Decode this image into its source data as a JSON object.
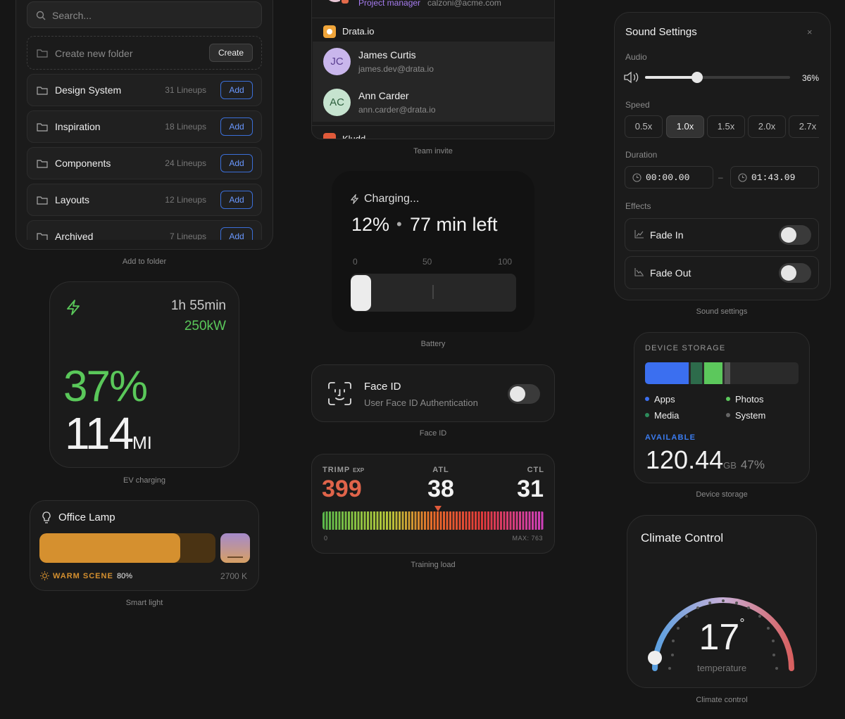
{
  "add_to_folder": {
    "search_placeholder": "Search...",
    "create_placeholder": "Create new folder",
    "create_button": "Create",
    "folders": [
      {
        "name": "Design System",
        "count": "31 Lineups",
        "button": "Add"
      },
      {
        "name": "Inspiration",
        "count": "18 Lineups",
        "button": "Add"
      },
      {
        "name": "Components",
        "count": "24 Lineups",
        "button": "Add"
      },
      {
        "name": "Layouts",
        "count": "12 Lineups",
        "button": "Add"
      },
      {
        "name": "Archived",
        "count": "7 Lineups",
        "button": "Add"
      }
    ],
    "caption": "Add to folder"
  },
  "ev_charging": {
    "time": "1h 55min",
    "power": "250kW",
    "percent": "37%",
    "range": "114",
    "range_unit": "MI",
    "caption": "EV charging"
  },
  "smart_light": {
    "title": "Office Lamp",
    "scene": "WARM SCENE",
    "separator": "·",
    "brightness": "80%",
    "temperature": "2700 K",
    "caption": "Smart light"
  },
  "team_invite": {
    "partial_member": {
      "role": "Project manager",
      "email": "calzoni@acme.com"
    },
    "team": "Drata.io",
    "members": [
      {
        "initials": "JC",
        "name": "James Curtis",
        "email": "james.dev@drata.io"
      },
      {
        "initials": "AC",
        "name": "Ann Carder",
        "email": "ann.carder@drata.io"
      }
    ],
    "next_team": "Kludd",
    "caption": "Team invite"
  },
  "battery": {
    "status": "Charging...",
    "percent": "12%",
    "separator": "•",
    "remaining": "77 min left",
    "scale": [
      "0",
      "50",
      "100"
    ],
    "caption": "Battery"
  },
  "face_id": {
    "title": "Face ID",
    "subtitle": "User Face ID Authentication",
    "caption": "Face ID"
  },
  "training_load": {
    "trimp_label": "TRIMP",
    "trimp_unit": "EXP",
    "trimp": "399",
    "atl_label": "ATL",
    "atl": "38",
    "ctl_label": "CTL",
    "ctl": "31",
    "scale_min": "0",
    "scale_max": "MAX: 763",
    "caption": "Training load"
  },
  "sound_settings": {
    "title": "Sound Settings",
    "close": "×",
    "audio_label": "Audio",
    "audio_value": "36%",
    "speed_label": "Speed",
    "speeds": [
      "0.5x",
      "1.0x",
      "1.5x",
      "2.0x",
      "2.7x"
    ],
    "duration_label": "Duration",
    "start": "00:00.00",
    "range_separator": "–",
    "end": "01:43.09",
    "effects_label": "Effects",
    "effects": [
      "Fade In",
      "Fade Out"
    ],
    "caption": "Sound settings"
  },
  "device_storage": {
    "title": "DEVICE STORAGE",
    "legend": [
      "Apps",
      "Photos",
      "Media",
      "System"
    ],
    "available_label": "AVAILABLE",
    "available": "120.44",
    "unit": "GB",
    "percent": "47%",
    "caption": "Device storage"
  },
  "climate_control": {
    "title": "Climate Control",
    "temperature": "17",
    "degree": "°",
    "label": "temperature",
    "caption": "Climate control"
  }
}
